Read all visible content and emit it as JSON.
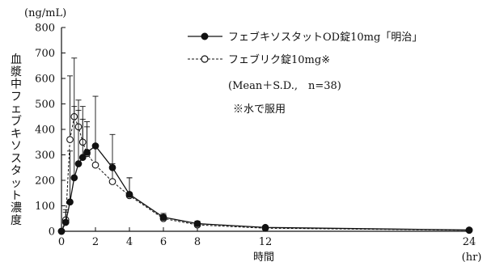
{
  "chart_data": {
    "type": "line",
    "title": "",
    "y_unit": "(ng/mL)",
    "ylabel": "血漿中フェブキソスタット濃度",
    "xlabel": "時間",
    "x_unit": "(hr)",
    "xlim": [
      0,
      24
    ],
    "ylim": [
      0,
      800
    ],
    "x_ticks": [
      0,
      2,
      4,
      6,
      8,
      12,
      24
    ],
    "y_ticks": [
      0,
      100,
      200,
      300,
      400,
      500,
      600,
      700,
      800
    ],
    "grid": false,
    "legend_position": "top-right",
    "legend_note_1": "(Mean＋S.D.,　n=38)",
    "legend_note_2": "※水で服用",
    "series": [
      {
        "name": "フェブキソスタットOD錠10mg「明治」",
        "marker": "filled-circle",
        "line": "solid",
        "x": [
          0,
          0.25,
          0.5,
          0.75,
          1.0,
          1.25,
          1.5,
          2,
          3,
          4,
          6,
          8,
          12,
          24
        ],
        "y": [
          0,
          35,
          115,
          210,
          265,
          290,
          310,
          335,
          250,
          145,
          55,
          30,
          15,
          5
        ],
        "sd": [
          0,
          40,
          200,
          280,
          210,
          150,
          100,
          195,
          130,
          65,
          15,
          10,
          5,
          3
        ]
      },
      {
        "name": "フェブリク錠10mg※",
        "marker": "open-circle",
        "line": "dashed",
        "x": [
          0,
          0.25,
          0.5,
          0.75,
          1.0,
          1.25,
          1.5,
          2,
          3,
          4,
          6,
          8,
          12,
          24
        ],
        "y": [
          0,
          45,
          360,
          450,
          410,
          350,
          305,
          260,
          195,
          140,
          50,
          25,
          12,
          4
        ],
        "sd": [
          0,
          40,
          250,
          230,
          105,
          140,
          125,
          75,
          70,
          70,
          15,
          8,
          5,
          3
        ]
      }
    ]
  }
}
